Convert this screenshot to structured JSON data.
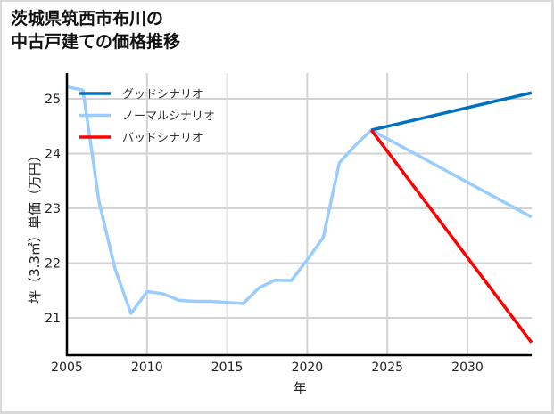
{
  "title_line1": "茨城県筑西市布川の",
  "title_line2": "中古戸建ての価格推移",
  "chart_data": {
    "type": "line",
    "title": "茨城県筑西市布川の中古戸建ての価格推移",
    "xlabel": "年",
    "ylabel": "坪（3.3㎡）単価（万円）",
    "xlim": [
      2005,
      2034
    ],
    "ylim": [
      20.4,
      25.4
    ],
    "x_ticks": [
      2005,
      2010,
      2015,
      2020,
      2025,
      2030
    ],
    "y_ticks": [
      21,
      22,
      23,
      24,
      25
    ],
    "grid": true,
    "legend_position": "upper left",
    "series": [
      {
        "name": "グッドシナリオ",
        "color": "#0070c0",
        "x": [
          2024,
          2034
        ],
        "values": [
          24.43,
          25.11
        ]
      },
      {
        "name": "ノーマルシナリオ",
        "color": "#99ccff",
        "x": [
          2005,
          2006,
          2007,
          2008,
          2009,
          2010,
          2011,
          2012,
          2013,
          2014,
          2015,
          2016,
          2017,
          2018,
          2019,
          2020,
          2021,
          2022,
          2023,
          2024,
          2034
        ],
        "values": [
          25.22,
          25.16,
          23.13,
          21.9,
          21.08,
          21.48,
          21.44,
          21.32,
          21.3,
          21.3,
          21.28,
          21.26,
          21.55,
          21.69,
          21.68,
          22.06,
          22.47,
          23.83,
          24.15,
          24.43,
          22.84
        ]
      },
      {
        "name": "バッドシナリオ",
        "color": "#ff0000",
        "x": [
          2024,
          2034
        ],
        "values": [
          24.43,
          20.55
        ]
      }
    ]
  }
}
